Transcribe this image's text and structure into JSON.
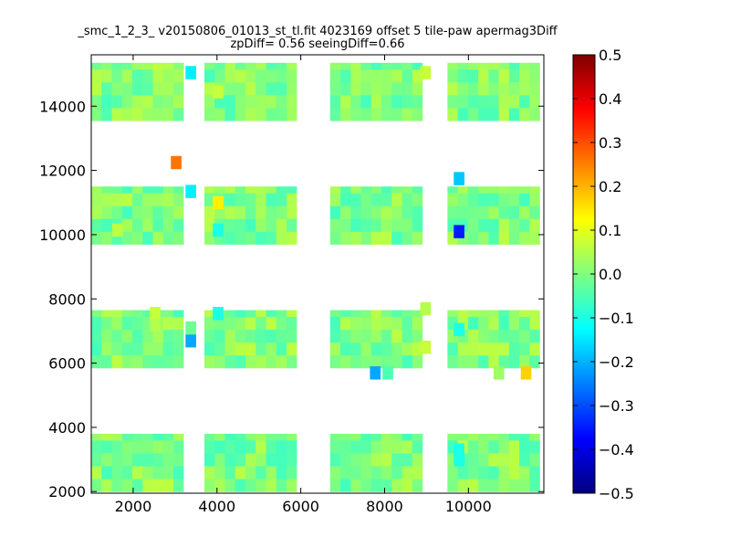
{
  "chart_data": {
    "type": "heatmap",
    "title": "_smc_1_2_3_ v20150806_01013_st_tl.fit 4023169 offset 5 tile-paw apermag3Diff",
    "subtitle": "zpDiff= 0.56 seeingDiff=0.66",
    "xlabel": "",
    "ylabel": "",
    "xlim": [
      1000,
      11800
    ],
    "ylim": [
      1950,
      15600
    ],
    "x_ticks": [
      "2000",
      "4000",
      "6000",
      "8000",
      "10000"
    ],
    "x_tick_values": [
      2000,
      4000,
      6000,
      8000,
      10000
    ],
    "y_ticks": [
      "2000",
      "4000",
      "6000",
      "8000",
      "10000",
      "12000",
      "14000"
    ],
    "y_tick_values": [
      2000,
      4000,
      6000,
      8000,
      10000,
      12000,
      14000
    ],
    "grid": false,
    "colormap": "jet",
    "colorbar": {
      "vmin": -0.5,
      "vmax": 0.5,
      "tick_labels": [
        "0.5",
        "0.4",
        "0.3",
        "0.2",
        "0.1",
        "0.0",
        "−0.1",
        "−0.2",
        "−0.3",
        "−0.4",
        "−0.5"
      ],
      "tick_values": [
        0.5,
        0.4,
        0.3,
        0.2,
        0.1,
        0.0,
        -0.1,
        -0.2,
        -0.3,
        -0.4,
        -0.5
      ]
    },
    "cell_width": 245,
    "cell_height": 400,
    "detector_columns": [
      1000,
      3700,
      6700,
      9500
    ],
    "detector_rows": [
      2000,
      5850,
      9700,
      13550
    ],
    "detector_size": [
      2200,
      1800
    ],
    "default_range": [
      -0.06,
      0.06
    ],
    "special_cells": [
      {
        "x": 2900,
        "y": 12050,
        "value": 0.26
      },
      {
        "x": 3250,
        "y": 14850,
        "value": -0.14
      },
      {
        "x": 3250,
        "y": 11150,
        "value": -0.14
      },
      {
        "x": 3900,
        "y": 10800,
        "value": 0.14
      },
      {
        "x": 3900,
        "y": 9950,
        "value": -0.1
      },
      {
        "x": 3900,
        "y": 7350,
        "value": -0.1
      },
      {
        "x": 3250,
        "y": 6500,
        "value": -0.21
      },
      {
        "x": 3250,
        "y": 6900,
        "value": -0.02
      },
      {
        "x": 2400,
        "y": 7350,
        "value": 0.07
      },
      {
        "x": 2400,
        "y": 7000,
        "value": 0.05
      },
      {
        "x": 7650,
        "y": 5500,
        "value": -0.21
      },
      {
        "x": 7950,
        "y": 5500,
        "value": -0.05
      },
      {
        "x": 9650,
        "y": 11550,
        "value": -0.18
      },
      {
        "x": 9650,
        "y": 9900,
        "value": -0.35
      },
      {
        "x": 9650,
        "y": 6850,
        "value": -0.1
      },
      {
        "x": 9650,
        "y": 3100,
        "value": -0.1
      },
      {
        "x": 9650,
        "y": 2800,
        "value": -0.1
      },
      {
        "x": 10600,
        "y": 5500,
        "value": 0.03
      },
      {
        "x": 11250,
        "y": 5500,
        "value": 0.17
      },
      {
        "x": 3900,
        "y": 14250,
        "value": 0.07
      },
      {
        "x": 8850,
        "y": 14850,
        "value": 0.07
      },
      {
        "x": 8850,
        "y": 6300,
        "value": 0.07
      },
      {
        "x": 8850,
        "y": 7500,
        "value": 0.05
      },
      {
        "x": 1500,
        "y": 9950,
        "value": 0.06
      }
    ]
  }
}
